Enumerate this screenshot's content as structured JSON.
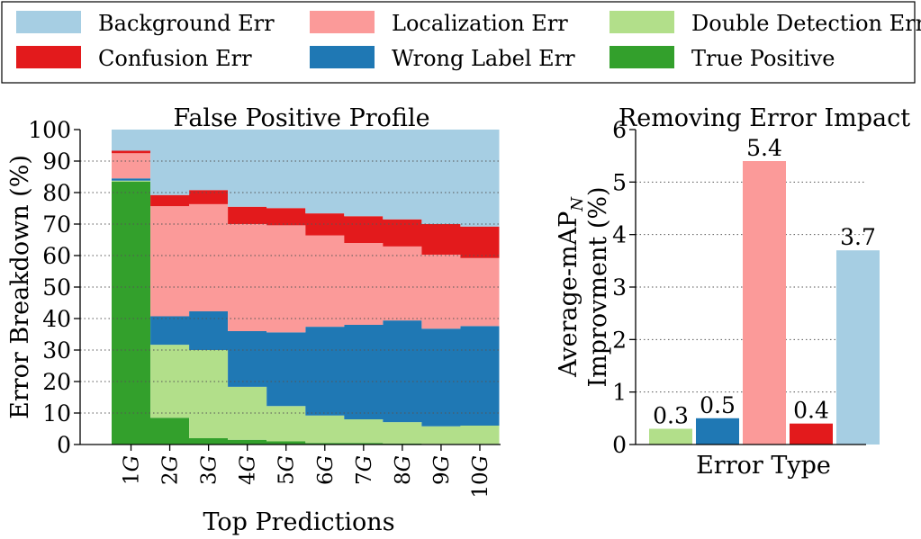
{
  "legend": {
    "items": [
      {
        "label": "Background Err",
        "color": "#a6cee3"
      },
      {
        "label": "Localization Err",
        "color": "#fb9a99"
      },
      {
        "label": "Double Detection Err",
        "color": "#b2df8a"
      },
      {
        "label": "Confusion Err",
        "color": "#e31a1c"
      },
      {
        "label": "Wrong Label Err",
        "color": "#1f78b4"
      },
      {
        "label": "True Positive",
        "color": "#33a02c"
      }
    ]
  },
  "chart_data": [
    {
      "type": "area",
      "title": "False Positive Profile",
      "xlabel": "Top Predictions",
      "ylabel": "Error Breakdown (%)",
      "ylim": [
        0,
        100
      ],
      "yticks": [
        "0",
        "10",
        "20",
        "30",
        "40",
        "50",
        "60",
        "70",
        "80",
        "90",
        "100"
      ],
      "categories": [
        "1G",
        "2G",
        "3G",
        "4G",
        "5G",
        "6G",
        "7G",
        "8G",
        "9G",
        "10G"
      ],
      "tick_labels": [
        {
          "num": "1",
          "sym": "G"
        },
        {
          "num": "2",
          "sym": "G"
        },
        {
          "num": "3",
          "sym": "G"
        },
        {
          "num": "4",
          "sym": "G"
        },
        {
          "num": "5",
          "sym": "G"
        },
        {
          "num": "6",
          "sym": "G"
        },
        {
          "num": "7",
          "sym": "G"
        },
        {
          "num": "8",
          "sym": "G"
        },
        {
          "num": "9",
          "sym": "G"
        },
        {
          "num": "10",
          "sym": "G"
        }
      ],
      "grid": true,
      "series": [
        {
          "name": "True Positive",
          "color": "#33a02c",
          "values": [
            83.5,
            8.5,
            2.0,
            1.5,
            1.0,
            0.5,
            0.5,
            0.3,
            0.2,
            0.2
          ]
        },
        {
          "name": "Double Detection Err",
          "color": "#b2df8a",
          "values": [
            0.3,
            23.2,
            28.0,
            16.8,
            11.2,
            8.7,
            7.5,
            6.8,
            5.6,
            5.8
          ]
        },
        {
          "name": "Wrong Label Err",
          "color": "#1f78b4",
          "values": [
            0.7,
            9.0,
            12.3,
            17.7,
            23.4,
            28.2,
            30.0,
            32.3,
            31.0,
            31.6
          ]
        },
        {
          "name": "Localization Err",
          "color": "#fb9a99",
          "values": [
            8.0,
            35.0,
            34.0,
            34.0,
            34.0,
            29.0,
            26.0,
            23.5,
            23.5,
            21.6
          ]
        },
        {
          "name": "Confusion Err",
          "color": "#e31a1c",
          "values": [
            0.8,
            3.5,
            4.5,
            5.5,
            5.5,
            7.0,
            8.5,
            8.6,
            9.7,
            10.0
          ]
        },
        {
          "name": "Background Err",
          "color": "#a6cee3",
          "values": [
            6.7,
            20.8,
            19.2,
            24.5,
            24.9,
            26.6,
            27.5,
            28.5,
            30.0,
            30.8
          ]
        }
      ]
    },
    {
      "type": "bar",
      "title": "Removing Error Impact",
      "xlabel": "Error Type",
      "ylabel_line1": "Average-mAP",
      "ylabel_sub": "N",
      "ylabel_line2": "Improvment (%)",
      "ylim": [
        0,
        6
      ],
      "yticks": [
        "0",
        "1",
        "2",
        "3",
        "4",
        "5",
        "6"
      ],
      "grid": true,
      "bars": [
        {
          "name": "Double Detection Err",
          "value": 0.3,
          "label": "0.3",
          "color": "#b2df8a"
        },
        {
          "name": "Wrong Label Err",
          "value": 0.5,
          "label": "0.5",
          "color": "#1f78b4"
        },
        {
          "name": "Localization Err",
          "value": 5.4,
          "label": "5.4",
          "color": "#fb9a99"
        },
        {
          "name": "Confusion Err",
          "value": 0.4,
          "label": "0.4",
          "color": "#e31a1c"
        },
        {
          "name": "Background Err",
          "value": 3.7,
          "label": "3.7",
          "color": "#a6cee3"
        }
      ]
    }
  ]
}
